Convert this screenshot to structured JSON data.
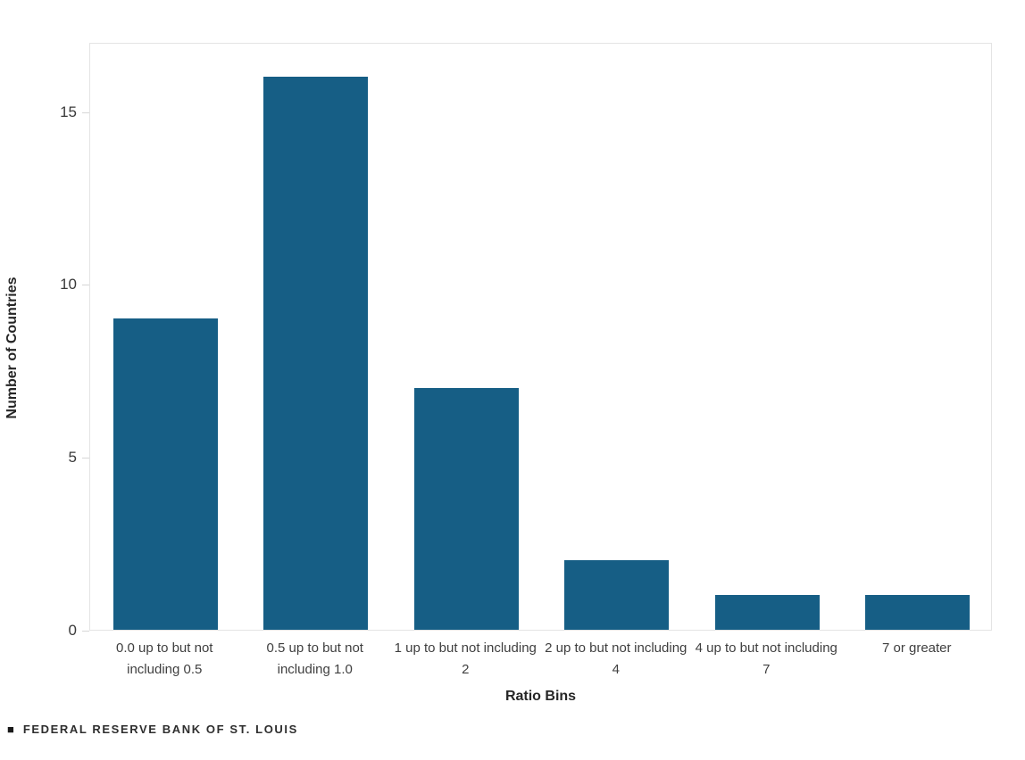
{
  "chart_data": {
    "type": "bar",
    "title": "",
    "categories": [
      "0.0 up to but not including 0.5",
      "0.5 up to but not including 1.0",
      "1 up to but not including 2",
      "2 up to but not including 4",
      "4 up to but not including 7",
      "7 or greater"
    ],
    "values": [
      9,
      16,
      7,
      2,
      1,
      1
    ],
    "xlabel": "Ratio Bins",
    "ylabel": "Number of Countries",
    "ylim": [
      0,
      17
    ],
    "yticks": [
      0,
      5,
      10,
      15
    ],
    "bar_color": "#165E85",
    "grid": false,
    "legend": "none"
  },
  "footer": {
    "square_icon": "■",
    "brand": "FEDERAL RESERVE BANK OF ST. LOUIS"
  }
}
